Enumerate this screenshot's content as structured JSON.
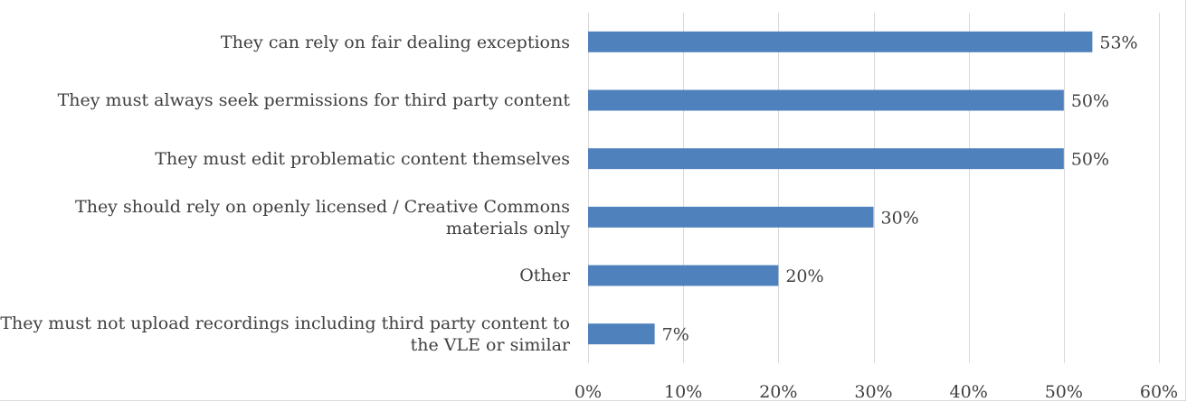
{
  "chart_data": {
    "type": "bar",
    "orientation": "horizontal",
    "title": "",
    "xlabel": "",
    "ylabel": "",
    "categories": [
      "They can rely on fair dealing exceptions",
      "They must always seek permissions for third party content",
      "They must edit problematic content themselves",
      "They should rely on openly licensed / Creative Commons materials only",
      "Other",
      "They must not upload recordings including third party content to the VLE or similar"
    ],
    "values": [
      53,
      50,
      50,
      30,
      20,
      7
    ],
    "data_labels": [
      "53%",
      "50%",
      "50%",
      "30%",
      "20%",
      "7%"
    ],
    "xlim": [
      0,
      60
    ],
    "x_ticks": [
      0,
      10,
      20,
      30,
      40,
      50,
      60
    ],
    "x_tick_labels": [
      "0%",
      "10%",
      "20%",
      "30%",
      "40%",
      "50%",
      "60%"
    ],
    "grid": "vertical gridlines",
    "legend": "none",
    "bar_color": "#4f81bd",
    "grid_color": "#d9d9d9",
    "text_color": "#404040"
  }
}
